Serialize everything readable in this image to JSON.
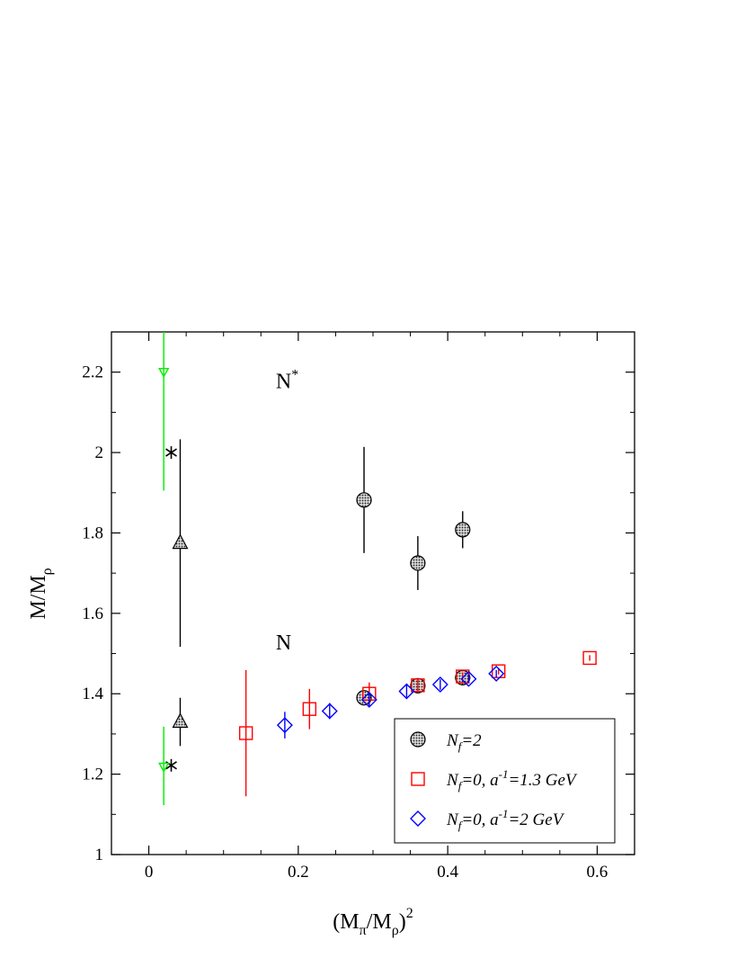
{
  "chart_data": {
    "type": "scatter",
    "xlim": [
      -0.05,
      0.65
    ],
    "ylim": [
      1.0,
      2.3
    ],
    "x_ticks": [
      0,
      0.2,
      0.4,
      0.6
    ],
    "x_tick_labels": [
      "0",
      "0.2",
      "0.4",
      "0.6"
    ],
    "y_ticks": [
      1.0,
      1.2,
      1.4,
      1.6,
      1.8,
      2.0,
      2.2
    ],
    "y_tick_labels": [
      "1",
      "1.2",
      "1.4",
      "1.6",
      "1.8",
      "2",
      "2.2"
    ],
    "xlabel": {
      "base": "(M",
      "sub1": "π",
      "mid": "/M",
      "sub2": "ρ",
      "close": ")",
      "sup": "2"
    },
    "ylabel": {
      "base": "M/M",
      "sub": "ρ"
    },
    "grid": false,
    "legend_placement": "bottom-right",
    "annotations": [
      {
        "text": "N",
        "sup": "*",
        "x": 0.17,
        "y": 2.16
      },
      {
        "text": "N",
        "sup": "",
        "x": 0.17,
        "y": 1.51
      }
    ],
    "series": [
      {
        "name": "N_f=2",
        "legend": {
          "n": "N",
          "sub": "f",
          "rest": "=2"
        },
        "marker": "circle-hatched",
        "color": "#000000",
        "points": [
          {
            "x": 0.288,
            "y": 1.882,
            "err": 0.132
          },
          {
            "x": 0.36,
            "y": 1.725,
            "err": 0.067
          },
          {
            "x": 0.42,
            "y": 1.808,
            "err": 0.046
          },
          {
            "x": 0.288,
            "y": 1.39,
            "err": 0.013
          },
          {
            "x": 0.36,
            "y": 1.42,
            "err": 0.013
          },
          {
            "x": 0.42,
            "y": 1.44,
            "err": 0.01
          }
        ]
      },
      {
        "name": "N_f=0, a^-1=1.3 GeV",
        "legend": {
          "n": "N",
          "sub": "f",
          "rest": "=0, a",
          "sup": "-1",
          "tail": "=1.3 GeV"
        },
        "marker": "square",
        "color": "#ff0000",
        "points": [
          {
            "x": 0.13,
            "y": 1.302,
            "err": 0.157
          },
          {
            "x": 0.215,
            "y": 1.362,
            "err": 0.05
          },
          {
            "x": 0.295,
            "y": 1.4,
            "err": 0.028
          },
          {
            "x": 0.36,
            "y": 1.421,
            "err": 0.015
          },
          {
            "x": 0.42,
            "y": 1.443,
            "err": 0.01
          },
          {
            "x": 0.468,
            "y": 1.456,
            "err": 0.008
          },
          {
            "x": 0.59,
            "y": 1.489,
            "err": 0.007
          }
        ]
      },
      {
        "name": "N_f=0, a^-1=2 GeV",
        "legend": {
          "n": "N",
          "sub": "f",
          "rest": "=0, a",
          "sup": "-1",
          "tail": "=2 GeV"
        },
        "marker": "diamond",
        "color": "#0000ff",
        "points": [
          {
            "x": 0.182,
            "y": 1.322,
            "err": 0.033
          },
          {
            "x": 0.242,
            "y": 1.357,
            "err": 0.02
          },
          {
            "x": 0.295,
            "y": 1.385,
            "err": 0.018
          },
          {
            "x": 0.345,
            "y": 1.406,
            "err": 0.015
          },
          {
            "x": 0.39,
            "y": 1.423,
            "err": 0.013
          },
          {
            "x": 0.428,
            "y": 1.437,
            "err": 0.011
          },
          {
            "x": 0.465,
            "y": 1.45,
            "err": 0.009
          }
        ]
      },
      {
        "name": "star",
        "marker": "asterisk",
        "color": "#000000",
        "points": [
          {
            "x": 0.03,
            "y": 2.0,
            "err": 0
          },
          {
            "x": 0.03,
            "y": 1.222,
            "err": 0
          }
        ]
      },
      {
        "name": "triangle",
        "marker": "triangle-hatched",
        "color": "#000000",
        "points": [
          {
            "x": 0.042,
            "y": 1.775,
            "err": 0.258
          },
          {
            "x": 0.042,
            "y": 1.33,
            "err": 0.06
          }
        ]
      },
      {
        "name": "green",
        "marker": "triangle-down",
        "color": "#00ee00",
        "points": [
          {
            "x": 0.02,
            "y": 2.2,
            "err_up": 0.1,
            "err_down": 0.295
          },
          {
            "x": 0.02,
            "y": 1.218,
            "err_up": 0.1,
            "err_down": 0.095
          }
        ]
      }
    ]
  }
}
